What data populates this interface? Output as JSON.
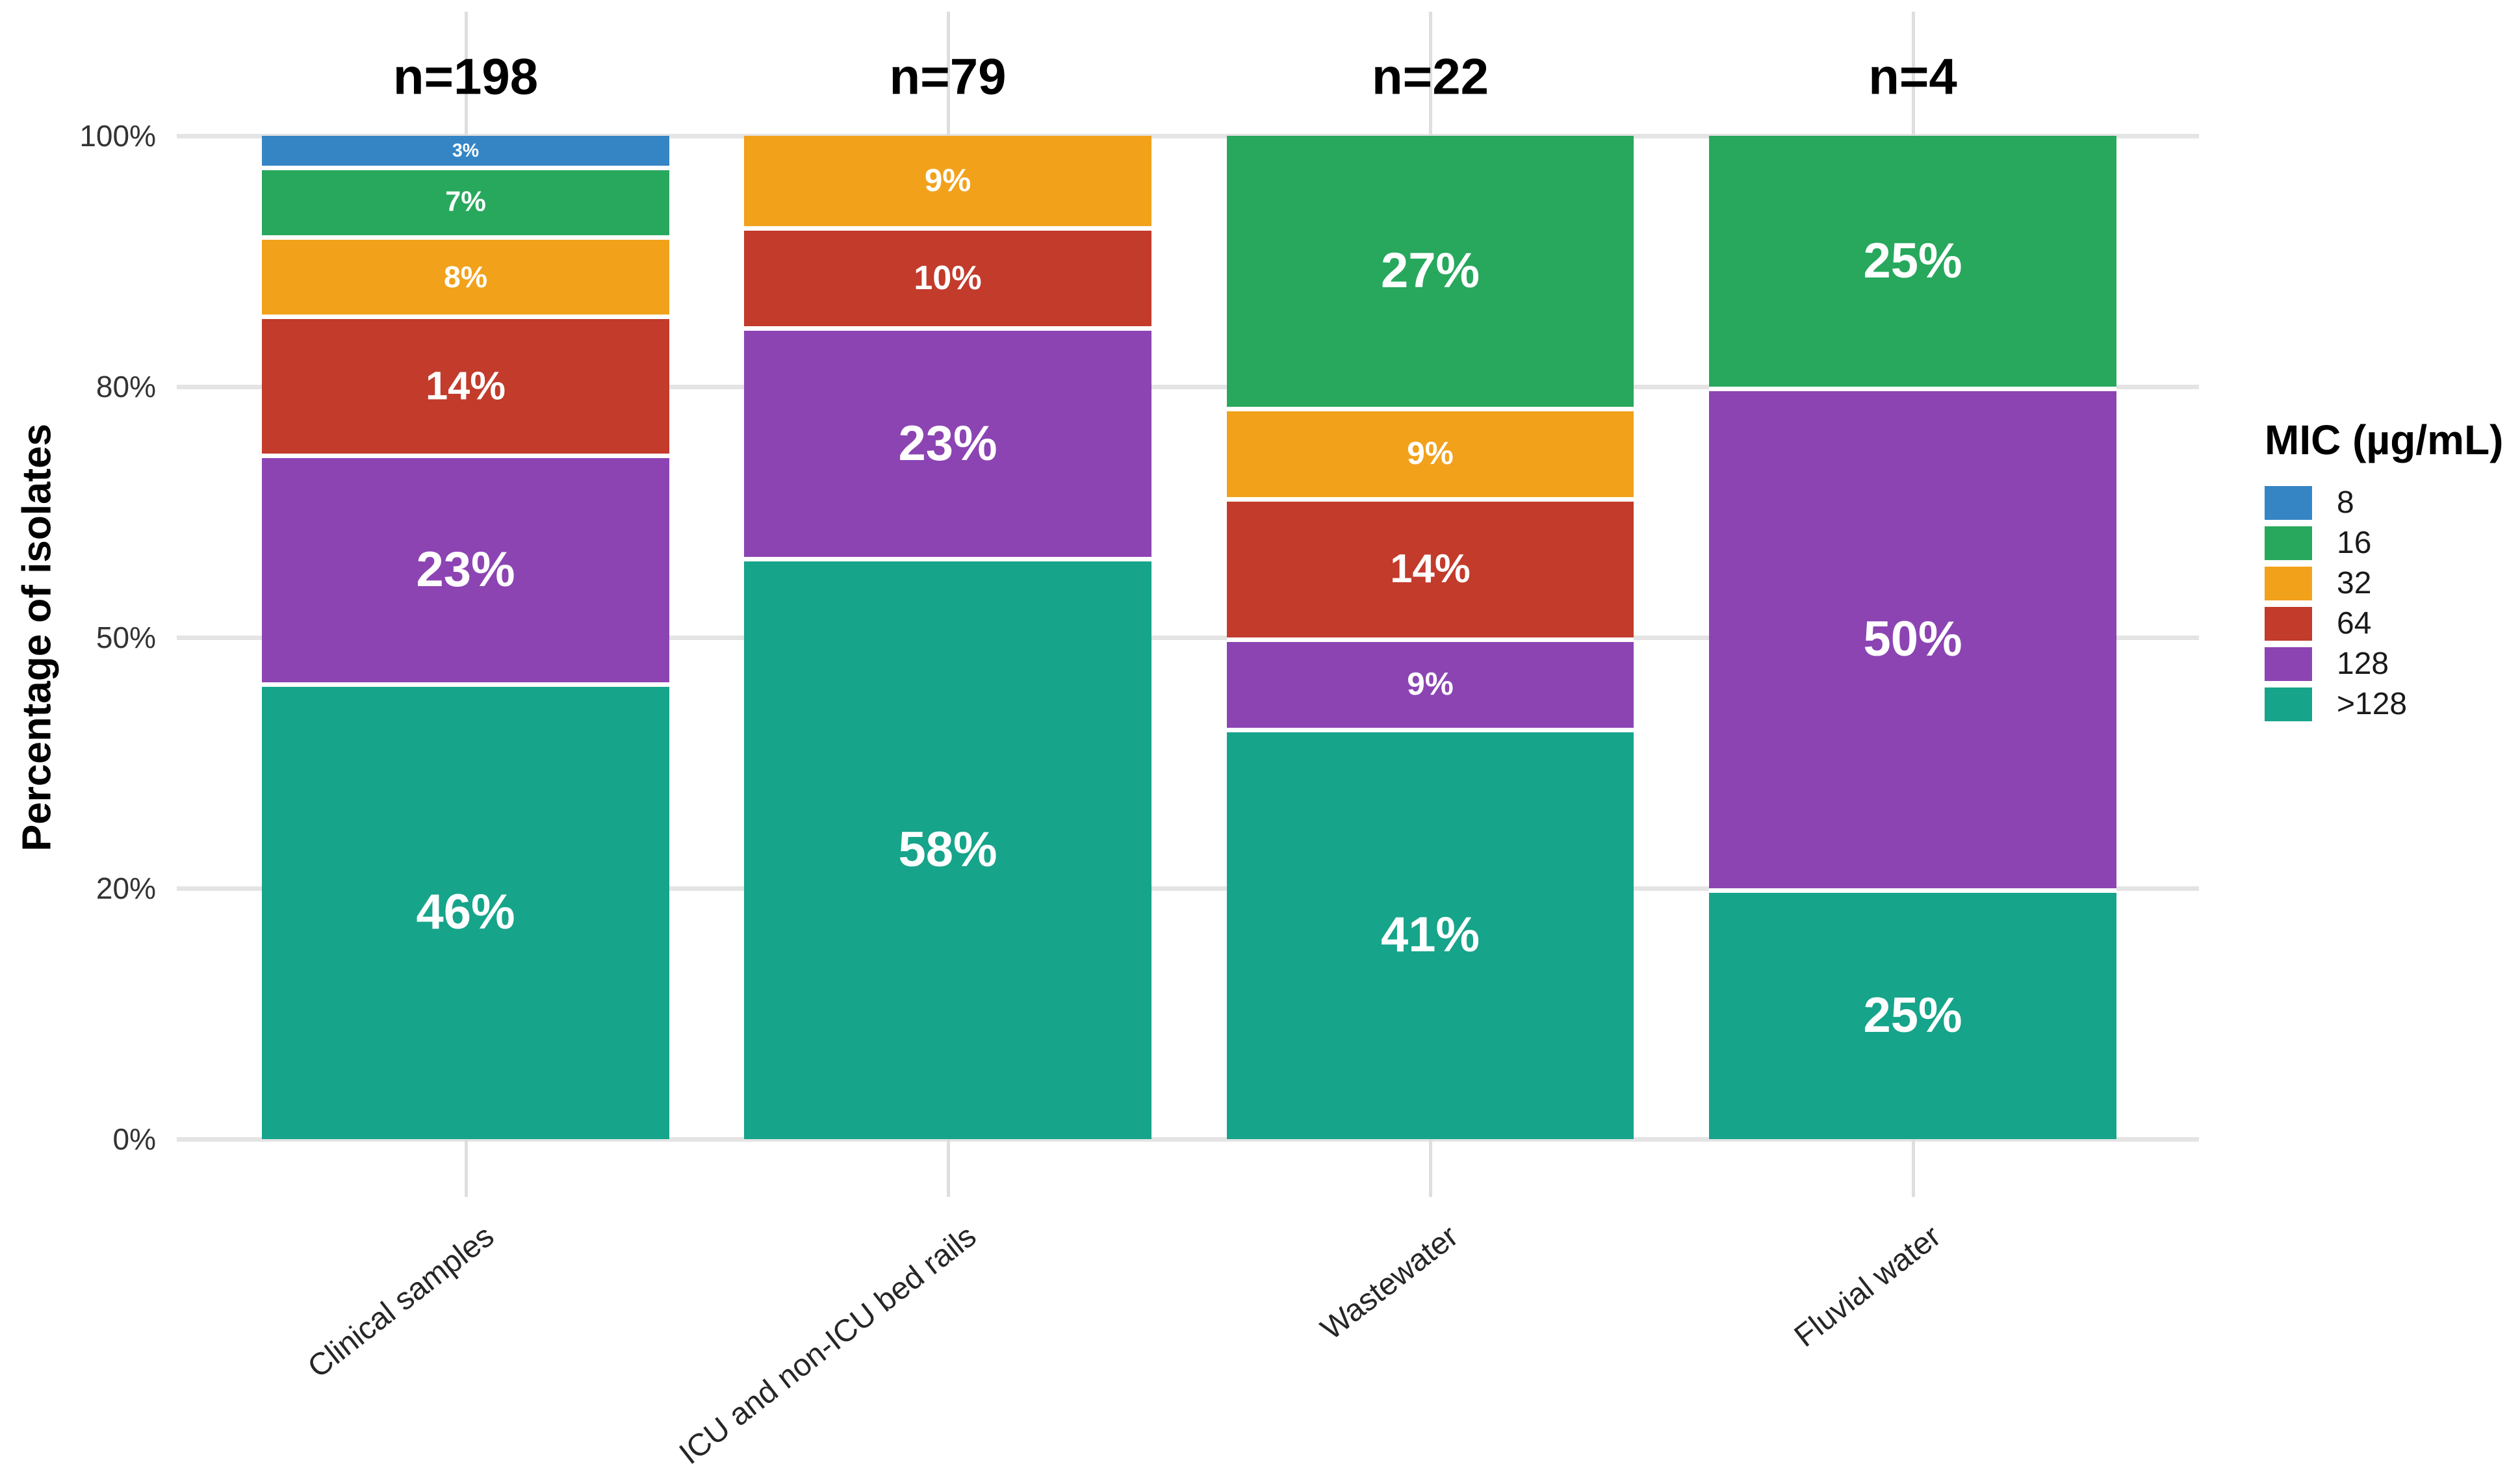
{
  "chart_data": {
    "type": "bar",
    "stacked": true,
    "percent_scale": true,
    "ylabel": "Percentage of isolates",
    "xlabel": "",
    "legend_title": "MIC (µg/mL)",
    "legend_position": "right",
    "grid": true,
    "ylim": [
      0,
      100
    ],
    "y_ticks": [
      {
        "value": 0,
        "label": "0%"
      },
      {
        "value": 20,
        "label": "20%"
      },
      {
        "value": 50,
        "label": "50%"
      },
      {
        "value": 80,
        "label": "80%"
      },
      {
        "value": 100,
        "label": "100%"
      }
    ],
    "y_ticks_equally_spaced": true,
    "categories": [
      "Clinical samples",
      "ICU and non-ICU bed rails",
      "Wastewater",
      "Fluvial water"
    ],
    "n_labels": [
      "n=198",
      "n=79",
      "n=22",
      "n=4"
    ],
    "mic_levels": [
      {
        "mic": "8",
        "color": "#3585c5"
      },
      {
        "mic": "16",
        "color": "#27a85c"
      },
      {
        "mic": "32",
        "color": "#f2a11b"
      },
      {
        "mic": "64",
        "color": "#c23b2b"
      },
      {
        "mic": "128",
        "color": "#8c44b3"
      },
      {
        "mic": ">128",
        "color": "#16a48a"
      }
    ],
    "bars": [
      {
        "category": "Clinical samples",
        "n_label": "n=198",
        "segments_top_to_bottom": [
          {
            "mic": "8",
            "pct": 3,
            "label": "3%"
          },
          {
            "mic": "16",
            "pct": 7,
            "label": "7%"
          },
          {
            "mic": "32",
            "pct": 8,
            "label": "8%"
          },
          {
            "mic": "64",
            "pct": 14,
            "label": "14%"
          },
          {
            "mic": "128",
            "pct": 23,
            "label": "23%"
          },
          {
            "mic": ">128",
            "pct": 46,
            "label": "46%"
          }
        ]
      },
      {
        "category": "ICU and non-ICU bed rails",
        "n_label": "n=79",
        "segments_top_to_bottom": [
          {
            "mic": "32",
            "pct": 9,
            "label": "9%"
          },
          {
            "mic": "64",
            "pct": 10,
            "label": "10%"
          },
          {
            "mic": "128",
            "pct": 23,
            "label": "23%"
          },
          {
            "mic": ">128",
            "pct": 58,
            "label": "58%"
          }
        ]
      },
      {
        "category": "Wastewater",
        "n_label": "n=22",
        "segments_top_to_bottom": [
          {
            "mic": "16",
            "pct": 27,
            "label": "27%"
          },
          {
            "mic": "32",
            "pct": 9,
            "label": "9%"
          },
          {
            "mic": "64",
            "pct": 14,
            "label": "14%"
          },
          {
            "mic": "128",
            "pct": 9,
            "label": "9%"
          },
          {
            "mic": ">128",
            "pct": 41,
            "label": "41%"
          }
        ]
      },
      {
        "category": "Fluvial water",
        "n_label": "n=4",
        "segments_top_to_bottom": [
          {
            "mic": "16",
            "pct": 25,
            "label": "25%"
          },
          {
            "mic": "128",
            "pct": 50,
            "label": "50%"
          },
          {
            "mic": ">128",
            "pct": 25,
            "label": "25%"
          }
        ]
      }
    ]
  }
}
